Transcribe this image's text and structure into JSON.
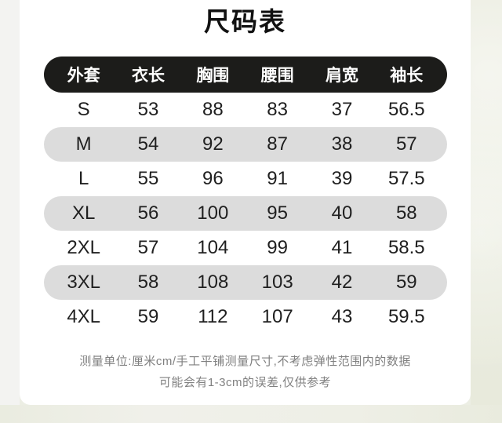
{
  "page": {
    "title": "尺码表",
    "unit_note_line1": "测量单位:厘米cm/手工平铺测量尺寸,不考虑弹性范围内的数据",
    "unit_note_line2": "可能会有1-3cm的误差,仅供参考"
  },
  "size_table": {
    "headers": [
      "外套",
      "衣长",
      "胸围",
      "腰围",
      "肩宽",
      "袖长"
    ],
    "rows": [
      {
        "size": "S",
        "values": [
          "53",
          "88",
          "83",
          "37",
          "56.5"
        ]
      },
      {
        "size": "M",
        "values": [
          "54",
          "92",
          "87",
          "38",
          "57"
        ]
      },
      {
        "size": "L",
        "values": [
          "55",
          "96",
          "91",
          "39",
          "57.5"
        ]
      },
      {
        "size": "XL",
        "values": [
          "56",
          "100",
          "95",
          "40",
          "58"
        ]
      },
      {
        "size": "2XL",
        "values": [
          "57",
          "104",
          "99",
          "41",
          "58.5"
        ]
      },
      {
        "size": "3XL",
        "values": [
          "58",
          "108",
          "103",
          "42",
          "59"
        ]
      },
      {
        "size": "4XL",
        "values": [
          "59",
          "112",
          "107",
          "43",
          "59.5"
        ]
      }
    ]
  },
  "colors": {
    "card_bg": "#ffffff",
    "header_pill_bg": "#1c1c1a",
    "header_pill_text": "#ffffff",
    "alt_row_bg": "#dcdcdc",
    "body_text": "#1f1f1f",
    "note_text": "#808080",
    "page_bg_left": "#f3f3f1",
    "page_bg_right": "#e8eadc"
  }
}
